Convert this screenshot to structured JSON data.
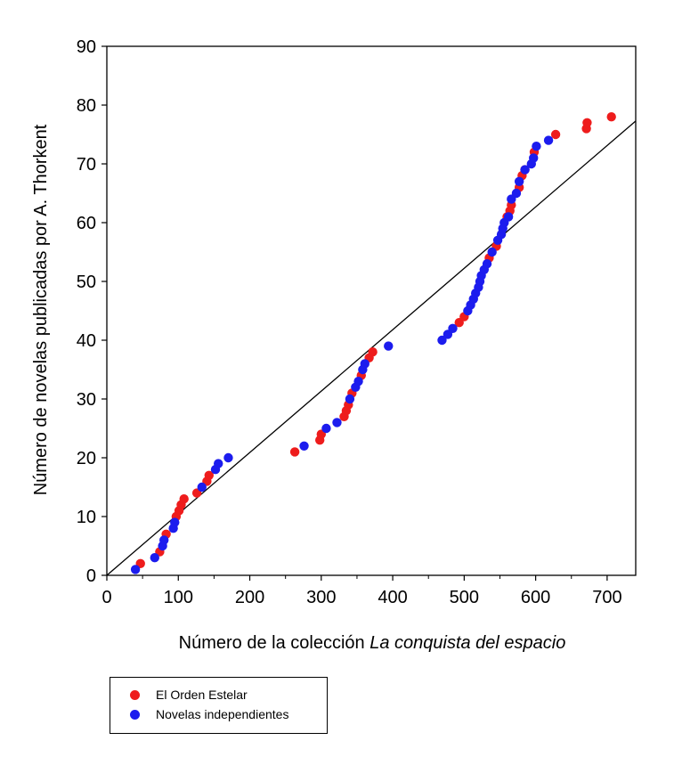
{
  "chart_data": {
    "type": "scatter",
    "xlabel_prefix": "Número de la colección ",
    "xlabel_italic": "La conquista del espacio",
    "ylabel": "Número de novelas publicadas por A. Thorkent",
    "xlim": [
      0,
      740
    ],
    "ylim": [
      0,
      90
    ],
    "xticks": [
      0,
      100,
      200,
      300,
      400,
      500,
      600,
      700
    ],
    "yticks": [
      0,
      10,
      20,
      30,
      40,
      50,
      60,
      70,
      80,
      90
    ],
    "grid": false,
    "legend_position": "bottom-left",
    "reference_line": {
      "x": [
        0,
        740
      ],
      "y": [
        0,
        77.3
      ]
    },
    "series": [
      {
        "name": "El Orden Estelar",
        "color": "#ee1c1c",
        "points": [
          [
            47,
            2
          ],
          [
            74,
            4
          ],
          [
            83,
            7
          ],
          [
            97,
            10
          ],
          [
            101,
            11
          ],
          [
            104,
            12
          ],
          [
            108,
            13
          ],
          [
            126,
            14
          ],
          [
            140,
            16
          ],
          [
            143,
            17
          ],
          [
            263,
            21
          ],
          [
            298,
            23
          ],
          [
            300,
            24
          ],
          [
            332,
            27
          ],
          [
            335,
            28
          ],
          [
            338,
            29
          ],
          [
            343,
            31
          ],
          [
            356,
            34
          ],
          [
            367,
            37
          ],
          [
            372,
            38
          ],
          [
            493,
            43
          ],
          [
            500,
            44
          ],
          [
            535,
            54
          ],
          [
            545,
            56
          ],
          [
            560,
            61
          ],
          [
            564,
            62
          ],
          [
            566,
            63
          ],
          [
            577,
            66
          ],
          [
            581,
            68
          ],
          [
            585,
            69
          ],
          [
            598,
            72
          ],
          [
            628,
            75
          ],
          [
            671,
            76
          ],
          [
            672,
            77
          ],
          [
            706,
            78
          ]
        ]
      },
      {
        "name": "Novelas independientes",
        "color": "#1c1cee",
        "points": [
          [
            40,
            1
          ],
          [
            67,
            3
          ],
          [
            78,
            5
          ],
          [
            80,
            6
          ],
          [
            93,
            8
          ],
          [
            95,
            9
          ],
          [
            133,
            15
          ],
          [
            152,
            18
          ],
          [
            156,
            19
          ],
          [
            170,
            20
          ],
          [
            276,
            22
          ],
          [
            307,
            25
          ],
          [
            322,
            26
          ],
          [
            340,
            30
          ],
          [
            348,
            32
          ],
          [
            352,
            33
          ],
          [
            358,
            35
          ],
          [
            361,
            36
          ],
          [
            394,
            39
          ],
          [
            469,
            40
          ],
          [
            477,
            41
          ],
          [
            484,
            42
          ],
          [
            505,
            45
          ],
          [
            509,
            46
          ],
          [
            513,
            47
          ],
          [
            516,
            48
          ],
          [
            520,
            49
          ],
          [
            522,
            50
          ],
          [
            524,
            51
          ],
          [
            528,
            52
          ],
          [
            532,
            53
          ],
          [
            539,
            55
          ],
          [
            547,
            57
          ],
          [
            552,
            58
          ],
          [
            554,
            59
          ],
          [
            556,
            60
          ],
          [
            562,
            61
          ],
          [
            566,
            64
          ],
          [
            573,
            65
          ],
          [
            577,
            67
          ],
          [
            585,
            69
          ],
          [
            594,
            70
          ],
          [
            597,
            71
          ],
          [
            601,
            73
          ],
          [
            618,
            74
          ]
        ]
      }
    ]
  }
}
